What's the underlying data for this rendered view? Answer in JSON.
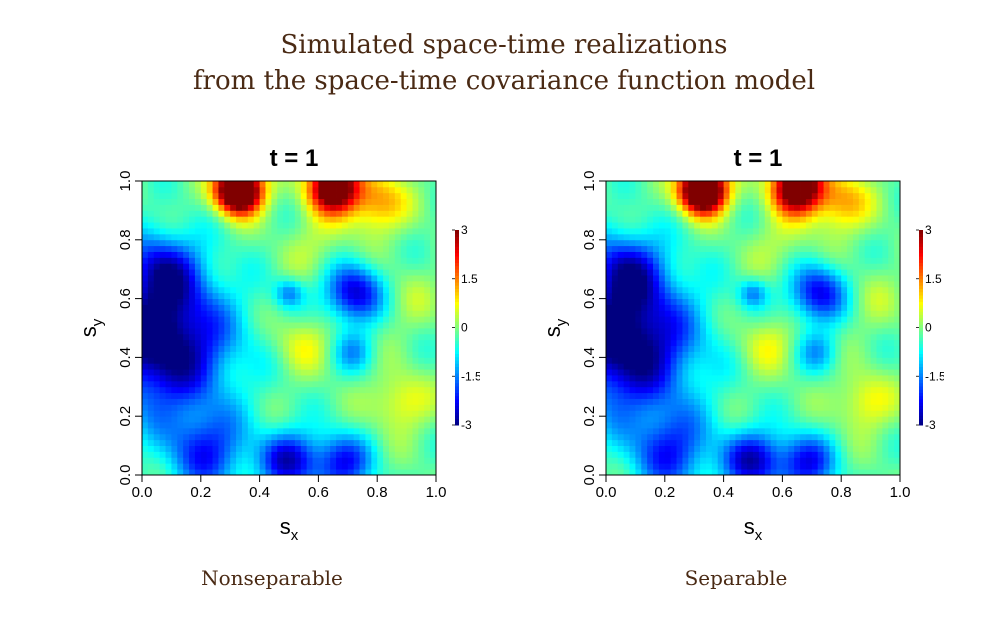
{
  "title": {
    "line1": "Simulated space-time realizations",
    "line2": "from the space-time covariance function model"
  },
  "chart_data": [
    {
      "type": "heatmap",
      "title": "t = 1",
      "caption": "Nonseparable",
      "xlabel": "s",
      "xlabel_sub": "x",
      "ylabel": "s",
      "ylabel_sub": "y",
      "xlim": [
        0.0,
        1.0
      ],
      "ylim": [
        0.0,
        1.0
      ],
      "xticks": [
        "0.0",
        "0.2",
        "0.4",
        "0.6",
        "0.8",
        "1.0"
      ],
      "yticks": [
        "0.0",
        "0.2",
        "0.4",
        "0.6",
        "0.8",
        "1.0"
      ],
      "colorbar": {
        "range": [
          -3,
          3
        ],
        "ticks": [
          "3",
          "1.5",
          "0",
          "-1.5",
          "-3"
        ],
        "tick_values": [
          3,
          1.5,
          0,
          -1.5,
          -3
        ]
      },
      "features": [
        {
          "x": 0.33,
          "y": 0.97,
          "v": 5.5,
          "s": 0.055
        },
        {
          "x": 0.65,
          "y": 0.98,
          "v": 4.2,
          "s": 0.06
        },
        {
          "x": 0.8,
          "y": 0.93,
          "v": 1.6,
          "s": 0.07
        },
        {
          "x": 0.07,
          "y": 0.45,
          "v": -3.2,
          "s": 0.16
        },
        {
          "x": 0.07,
          "y": 0.7,
          "v": -1.8,
          "s": 0.09
        },
        {
          "x": 0.22,
          "y": 0.08,
          "v": -1.8,
          "s": 0.1
        },
        {
          "x": 0.5,
          "y": 0.05,
          "v": -2.2,
          "s": 0.07
        },
        {
          "x": 0.68,
          "y": 0.04,
          "v": -2.0,
          "s": 0.07
        },
        {
          "x": 0.72,
          "y": 0.62,
          "v": -2.4,
          "s": 0.07
        },
        {
          "x": 0.72,
          "y": 0.42,
          "v": -1.0,
          "s": 0.05
        },
        {
          "x": 0.5,
          "y": 0.62,
          "v": -1.2,
          "s": 0.035
        },
        {
          "x": 0.55,
          "y": 0.45,
          "v": 0.8,
          "s": 0.07
        },
        {
          "x": 0.88,
          "y": 0.25,
          "v": 1.0,
          "s": 0.07
        },
        {
          "x": 0.6,
          "y": 0.78,
          "v": 0.5,
          "s": 0.08
        },
        {
          "x": 0.9,
          "y": 0.6,
          "v": 0.4,
          "s": 0.08
        }
      ]
    },
    {
      "type": "heatmap",
      "title": "t = 1",
      "caption": "Separable",
      "xlabel": "s",
      "xlabel_sub": "x",
      "ylabel": "s",
      "ylabel_sub": "y",
      "xlim": [
        0.0,
        1.0
      ],
      "ylim": [
        0.0,
        1.0
      ],
      "xticks": [
        "0.0",
        "0.2",
        "0.4",
        "0.6",
        "0.8",
        "1.0"
      ],
      "yticks": [
        "0.0",
        "0.2",
        "0.4",
        "0.6",
        "0.8",
        "1.0"
      ],
      "colorbar": {
        "range": [
          -3,
          3
        ],
        "ticks": [
          "3",
          "1.5",
          "0",
          "-1.5",
          "-3"
        ],
        "tick_values": [
          3,
          1.5,
          0,
          -1.5,
          -3
        ]
      },
      "features": [
        {
          "x": 0.33,
          "y": 0.97,
          "v": 5.5,
          "s": 0.055
        },
        {
          "x": 0.65,
          "y": 0.98,
          "v": 4.4,
          "s": 0.06
        },
        {
          "x": 0.8,
          "y": 0.93,
          "v": 1.5,
          "s": 0.07
        },
        {
          "x": 0.07,
          "y": 0.45,
          "v": -3.2,
          "s": 0.16
        },
        {
          "x": 0.07,
          "y": 0.7,
          "v": -1.8,
          "s": 0.09
        },
        {
          "x": 0.22,
          "y": 0.08,
          "v": -1.8,
          "s": 0.1
        },
        {
          "x": 0.5,
          "y": 0.05,
          "v": -2.3,
          "s": 0.07
        },
        {
          "x": 0.68,
          "y": 0.04,
          "v": -2.0,
          "s": 0.07
        },
        {
          "x": 0.72,
          "y": 0.62,
          "v": -2.2,
          "s": 0.07
        },
        {
          "x": 0.72,
          "y": 0.42,
          "v": -1.0,
          "s": 0.05
        },
        {
          "x": 0.5,
          "y": 0.62,
          "v": -1.2,
          "s": 0.035
        },
        {
          "x": 0.55,
          "y": 0.45,
          "v": 0.8,
          "s": 0.07
        },
        {
          "x": 0.88,
          "y": 0.25,
          "v": 1.0,
          "s": 0.07
        },
        {
          "x": 0.6,
          "y": 0.78,
          "v": 0.5,
          "s": 0.08
        },
        {
          "x": 0.9,
          "y": 0.6,
          "v": 0.4,
          "s": 0.08
        }
      ]
    }
  ]
}
